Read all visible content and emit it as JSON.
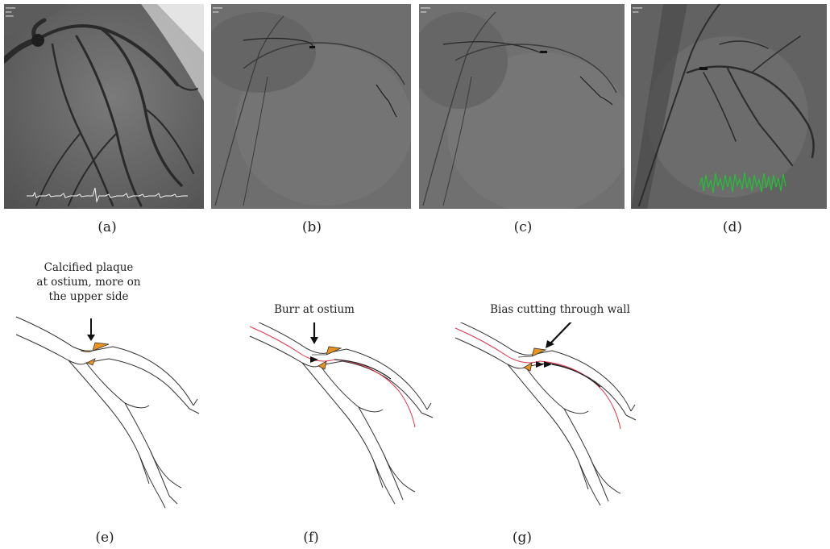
{
  "panels": [
    {
      "id": "a",
      "label": "(a)"
    },
    {
      "id": "b",
      "label": "(b)"
    },
    {
      "id": "c",
      "label": "(c)"
    },
    {
      "id": "d",
      "label": "(d)"
    },
    {
      "id": "e",
      "label": "(e)",
      "annotation_lines": [
        "Calcified plaque",
        "at ostium, more on",
        "the upper side"
      ]
    },
    {
      "id": "f",
      "label": "(f)",
      "annotation": "Burr at ostium"
    },
    {
      "id": "g",
      "label": "(g)",
      "annotation": "Bias cutting through wall"
    }
  ],
  "colors": {
    "plaque": "#e8941e",
    "wire": "#e0324a",
    "vessel_outline": "#333333",
    "ecg_trace_a": "#f4f4f4",
    "ecg_trace_d": "#22c234"
  },
  "icons": [
    "down-arrow-icon",
    "diagonal-arrow-icon",
    "burr-arrowhead-icon"
  ]
}
